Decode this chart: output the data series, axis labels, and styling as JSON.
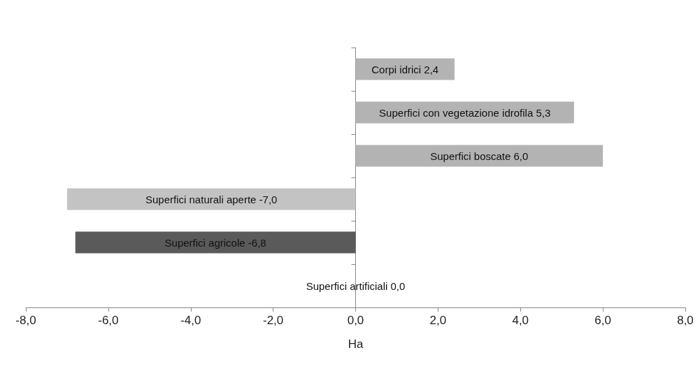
{
  "chart_data": {
    "type": "bar",
    "orientation": "horizontal",
    "xlabel": "Ha",
    "categories": [
      null,
      null,
      null,
      null,
      null,
      null
    ],
    "values": [
      2.4,
      5.3,
      6.0,
      -7.0,
      -6.8,
      0.0
    ],
    "colors": [
      "#b3b3b3",
      "#b3b3b3",
      "#b3b3b3",
      "#c3c3c3",
      "#5a5a5a",
      "#b3b3b3"
    ],
    "value_labels": [
      "Corpi idrici 2,4",
      "Superfici con vegetazione idrofila 5,3",
      "Superfici boscate 6,0",
      "Superfici naturali aperte -7,0",
      "Superfici agricole -6,8",
      "Superfici artificiali 0,0"
    ],
    "xlim": [
      -8,
      8
    ],
    "xticks": [
      {
        "value": -8,
        "label": "-8,0"
      },
      {
        "value": -6,
        "label": "-6,0"
      },
      {
        "value": -4,
        "label": "-4,0"
      },
      {
        "value": -2,
        "label": "-2,0"
      },
      {
        "value": 0,
        "label": "0,0"
      },
      {
        "value": 2,
        "label": "2,0"
      },
      {
        "value": 4,
        "label": "4,0"
      },
      {
        "value": 6,
        "label": "6,0"
      },
      {
        "value": 8,
        "label": "8,0"
      }
    ],
    "tick_labels": "x"
  }
}
